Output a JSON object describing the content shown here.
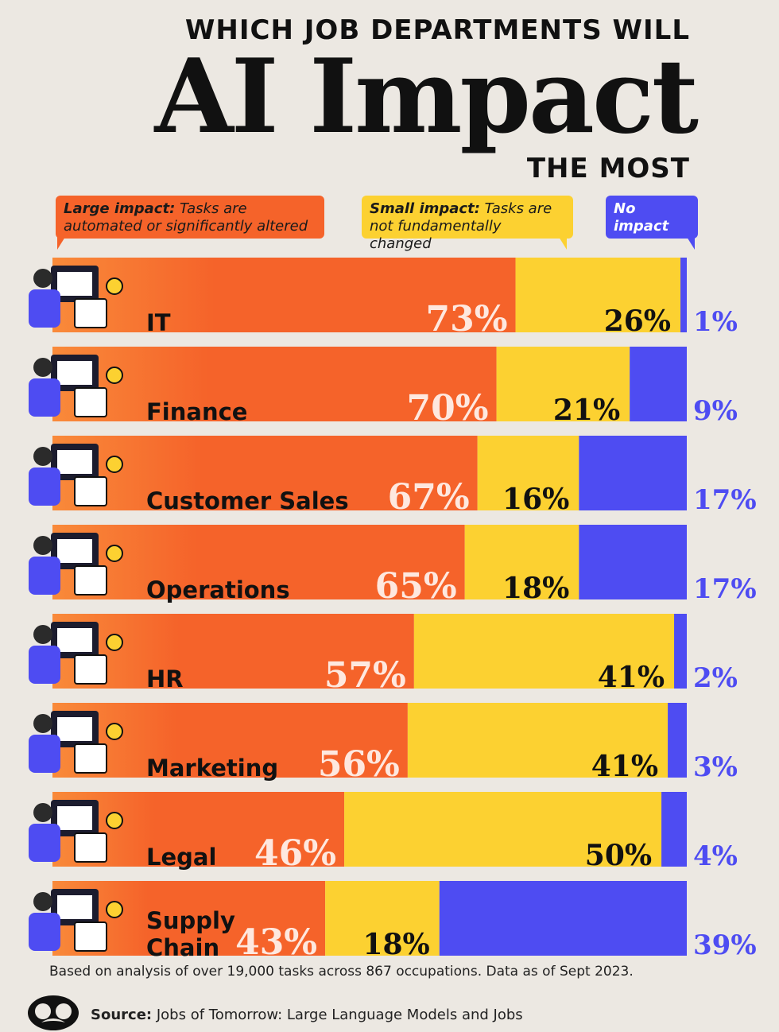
{
  "header": {
    "top": "WHICH JOB DEPARTMENTS WILL",
    "main": "AI Impact",
    "bottom": "THE MOST"
  },
  "legend": {
    "large_title": "Large impact:",
    "large_desc": "Tasks are automated or significantly altered",
    "small_title": "Small impact:",
    "small_desc": "Tasks are not fundamentally changed",
    "none_title": "No impact"
  },
  "colors": {
    "large": "#f5632a",
    "large_light": "#f98a3a",
    "small": "#fcd131",
    "none": "#4e4cf2",
    "background": "#ece8e2"
  },
  "chart_data": {
    "type": "bar",
    "stacked": true,
    "orientation": "horizontal",
    "categories": [
      "IT",
      "Finance",
      "Customer Sales",
      "Operations",
      "HR",
      "Marketing",
      "Legal",
      "Supply Chain"
    ],
    "series": [
      {
        "name": "Large impact",
        "values": [
          73,
          70,
          67,
          65,
          57,
          56,
          46,
          43
        ]
      },
      {
        "name": "Small impact",
        "values": [
          26,
          21,
          16,
          18,
          41,
          41,
          50,
          18
        ]
      },
      {
        "name": "No impact",
        "values": [
          1,
          9,
          17,
          17,
          2,
          3,
          4,
          39
        ]
      }
    ],
    "xlim": [
      0,
      100
    ],
    "labels": {
      "large": [
        "73%",
        "70%",
        "67%",
        "65%",
        "57%",
        "56%",
        "46%",
        "43%"
      ],
      "small": [
        "26%",
        "21%",
        "16%",
        "18%",
        "41%",
        "41%",
        "50%",
        "18%"
      ],
      "none": [
        "1%",
        "9%",
        "17%",
        "17%",
        "2%",
        "3%",
        "4%",
        "39%"
      ]
    },
    "category_labels": [
      [
        "IT"
      ],
      [
        "Finance"
      ],
      [
        "Customer Sales"
      ],
      [
        "Operations"
      ],
      [
        "HR"
      ],
      [
        "Marketing"
      ],
      [
        "Legal"
      ],
      [
        "Supply",
        "Chain"
      ]
    ]
  },
  "footer": {
    "note": "Based on analysis of over 19,000 tasks across 867 occupations. Data as of Sept 2023.",
    "source_label": "Source:",
    "source_text": "Jobs of Tomorrow: Large Language Models and Jobs"
  }
}
